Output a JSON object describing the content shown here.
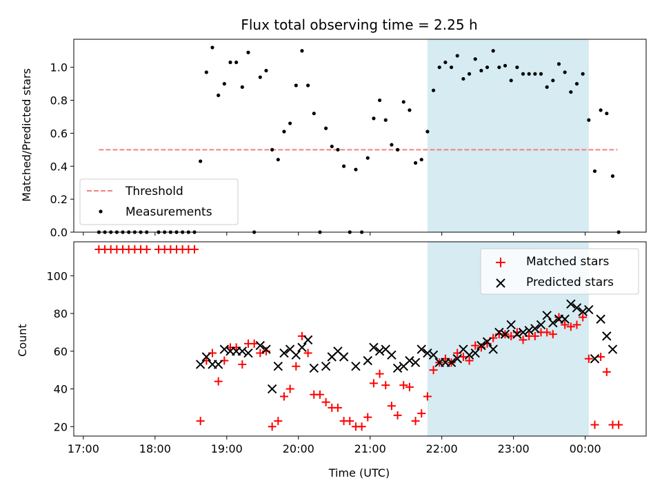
{
  "figure": {
    "title": "Flux total observing time = 2.25 h"
  },
  "colors": {
    "highlight": "#add8e6",
    "threshold": "#f08080",
    "matched": "#ff0000",
    "predicted": "#000000",
    "measurement": "#000000"
  },
  "chart_data": [
    {
      "type": "scatter",
      "panel": "top",
      "title": "Flux total observing time = 2.25 h",
      "xlabel": "",
      "ylabel": "Matched/Predicted stars",
      "ylim": [
        0,
        1.17
      ],
      "xlim": [
        "16:52",
        "00:51"
      ],
      "yticks": [
        "0.0",
        "0.2",
        "0.4",
        "0.6",
        "0.8",
        "1.0"
      ],
      "highlight_span": [
        "21:48",
        "00:03"
      ],
      "legend": {
        "position": "lower-left",
        "entries": [
          "Threshold",
          "Measurements"
        ]
      },
      "threshold": {
        "name": "Threshold",
        "y": 0.5,
        "x_range": [
          "17:13",
          "00:27"
        ],
        "style": "dashed"
      },
      "series": [
        {
          "name": "Measurements",
          "marker": "dot",
          "points": [
            [
              "17:13",
              0
            ],
            [
              "17:18",
              0
            ],
            [
              "17:23",
              0
            ],
            [
              "17:28",
              0
            ],
            [
              "17:33",
              0
            ],
            [
              "17:38",
              0
            ],
            [
              "17:43",
              0
            ],
            [
              "17:48",
              0
            ],
            [
              "17:53",
              0
            ],
            [
              "18:03",
              0
            ],
            [
              "18:08",
              0
            ],
            [
              "18:13",
              0
            ],
            [
              "18:18",
              0
            ],
            [
              "18:23",
              0
            ],
            [
              "18:28",
              0
            ],
            [
              "18:33",
              0
            ],
            [
              "18:38",
              0.43
            ],
            [
              "18:43",
              0.97
            ],
            [
              "18:48",
              1.12
            ],
            [
              "18:53",
              0.83
            ],
            [
              "18:58",
              0.9
            ],
            [
              "19:03",
              1.03
            ],
            [
              "19:08",
              1.03
            ],
            [
              "19:13",
              0.88
            ],
            [
              "19:18",
              1.09
            ],
            [
              "19:23",
              0
            ],
            [
              "19:28",
              0.94
            ],
            [
              "19:33",
              0.98
            ],
            [
              "19:38",
              0.5
            ],
            [
              "19:43",
              0.44
            ],
            [
              "19:48",
              0.61
            ],
            [
              "19:53",
              0.66
            ],
            [
              "19:58",
              0.89
            ],
            [
              "20:03",
              1.1
            ],
            [
              "20:08",
              0.89
            ],
            [
              "20:13",
              0.72
            ],
            [
              "20:18",
              0
            ],
            [
              "20:23",
              0.63
            ],
            [
              "20:28",
              0.52
            ],
            [
              "20:33",
              0.5
            ],
            [
              "20:38",
              0.4
            ],
            [
              "20:43",
              0
            ],
            [
              "20:48",
              0.38
            ],
            [
              "20:53",
              0
            ],
            [
              "20:58",
              0.45
            ],
            [
              "21:03",
              0.69
            ],
            [
              "21:08",
              0.8
            ],
            [
              "21:13",
              0.68
            ],
            [
              "21:18",
              0.53
            ],
            [
              "21:23",
              0.5
            ],
            [
              "21:28",
              0.79
            ],
            [
              "21:33",
              0.74
            ],
            [
              "21:38",
              0.42
            ],
            [
              "21:43",
              0.44
            ],
            [
              "21:48",
              0.61
            ],
            [
              "21:53",
              0.86
            ],
            [
              "21:58",
              1.0
            ],
            [
              "22:03",
              1.03
            ],
            [
              "22:08",
              1.0
            ],
            [
              "22:13",
              1.07
            ],
            [
              "22:18",
              0.93
            ],
            [
              "22:23",
              0.96
            ],
            [
              "22:28",
              1.05
            ],
            [
              "22:33",
              0.98
            ],
            [
              "22:38",
              1.0
            ],
            [
              "22:43",
              1.1
            ],
            [
              "22:48",
              1.0
            ],
            [
              "22:53",
              1.01
            ],
            [
              "22:58",
              0.92
            ],
            [
              "23:03",
              1.0
            ],
            [
              "23:08",
              0.96
            ],
            [
              "23:13",
              0.96
            ],
            [
              "23:18",
              0.96
            ],
            [
              "23:23",
              0.96
            ],
            [
              "23:28",
              0.88
            ],
            [
              "23:33",
              0.92
            ],
            [
              "23:38",
              1.02
            ],
            [
              "23:43",
              0.97
            ],
            [
              "23:48",
              0.85
            ],
            [
              "23:53",
              0.9
            ],
            [
              "23:58",
              0.96
            ],
            [
              "00:03",
              0.68
            ],
            [
              "00:08",
              0.37
            ],
            [
              "00:13",
              0.74
            ],
            [
              "00:18",
              0.72
            ],
            [
              "00:23",
              0.34
            ],
            [
              "00:28",
              0
            ]
          ]
        }
      ]
    },
    {
      "type": "scatter",
      "panel": "bottom",
      "title": "",
      "xlabel": "Time (UTC)",
      "ylabel": "Count",
      "ylim": [
        15,
        118
      ],
      "xlim": [
        "16:52",
        "00:51"
      ],
      "xticks": [
        "17:00",
        "18:00",
        "19:00",
        "20:00",
        "21:00",
        "22:00",
        "23:00",
        "00:00"
      ],
      "yticks": [
        "20",
        "40",
        "60",
        "80",
        "100"
      ],
      "highlight_span": [
        "21:48",
        "00:03"
      ],
      "legend": {
        "position": "top-right",
        "entries": [
          "Matched stars",
          "Predicted stars"
        ]
      },
      "series": [
        {
          "name": "Matched stars",
          "marker": "plus",
          "points": [
            [
              "17:13",
              114
            ],
            [
              "17:18",
              114
            ],
            [
              "17:23",
              114
            ],
            [
              "17:28",
              114
            ],
            [
              "17:33",
              114
            ],
            [
              "17:38",
              114
            ],
            [
              "17:43",
              114
            ],
            [
              "17:48",
              114
            ],
            [
              "17:53",
              114
            ],
            [
              "18:03",
              114
            ],
            [
              "18:08",
              114
            ],
            [
              "18:13",
              114
            ],
            [
              "18:18",
              114
            ],
            [
              "18:23",
              114
            ],
            [
              "18:28",
              114
            ],
            [
              "18:33",
              114
            ],
            [
              "18:38",
              23
            ],
            [
              "18:43",
              55
            ],
            [
              "18:48",
              59
            ],
            [
              "18:53",
              44
            ],
            [
              "18:58",
              55
            ],
            [
              "19:03",
              62
            ],
            [
              "19:08",
              62
            ],
            [
              "19:13",
              53
            ],
            [
              "19:18",
              64
            ],
            [
              "19:23",
              64
            ],
            [
              "19:28",
              59
            ],
            [
              "19:33",
              60
            ],
            [
              "19:38",
              20
            ],
            [
              "19:43",
              23
            ],
            [
              "19:48",
              36
            ],
            [
              "19:53",
              40
            ],
            [
              "19:58",
              52
            ],
            [
              "20:03",
              68
            ],
            [
              "20:08",
              59
            ],
            [
              "20:13",
              37
            ],
            [
              "20:18",
              37
            ],
            [
              "20:23",
              33
            ],
            [
              "20:28",
              30
            ],
            [
              "20:33",
              30
            ],
            [
              "20:38",
              23
            ],
            [
              "20:43",
              23
            ],
            [
              "20:48",
              20
            ],
            [
              "20:53",
              20
            ],
            [
              "20:58",
              25
            ],
            [
              "21:03",
              43
            ],
            [
              "21:08",
              48
            ],
            [
              "21:13",
              42
            ],
            [
              "21:18",
              31
            ],
            [
              "21:23",
              26
            ],
            [
              "21:28",
              42
            ],
            [
              "21:33",
              41
            ],
            [
              "21:38",
              23
            ],
            [
              "21:43",
              27
            ],
            [
              "21:48",
              36
            ],
            [
              "21:53",
              50
            ],
            [
              "21:58",
              54
            ],
            [
              "22:03",
              56
            ],
            [
              "22:08",
              54
            ],
            [
              "22:13",
              59
            ],
            [
              "22:18",
              57
            ],
            [
              "22:23",
              55
            ],
            [
              "22:28",
              63
            ],
            [
              "22:33",
              62
            ],
            [
              "22:38",
              64
            ],
            [
              "22:43",
              67
            ],
            [
              "22:48",
              69
            ],
            [
              "22:53",
              69
            ],
            [
              "22:58",
              68
            ],
            [
              "23:03",
              70
            ],
            [
              "23:08",
              66
            ],
            [
              "23:13",
              68
            ],
            [
              "23:18",
              68
            ],
            [
              "23:23",
              70
            ],
            [
              "23:28",
              70
            ],
            [
              "23:33",
              69
            ],
            [
              "23:38",
              78
            ],
            [
              "23:43",
              74
            ],
            [
              "23:48",
              73
            ],
            [
              "23:53",
              74
            ],
            [
              "23:58",
              78
            ],
            [
              "00:03",
              56
            ],
            [
              "00:08",
              21
            ],
            [
              "00:13",
              57
            ],
            [
              "00:18",
              49
            ],
            [
              "00:23",
              21
            ],
            [
              "00:28",
              21
            ]
          ]
        },
        {
          "name": "Predicted stars",
          "marker": "x",
          "points": [
            [
              "18:38",
              53
            ],
            [
              "18:43",
              57
            ],
            [
              "18:48",
              53
            ],
            [
              "18:53",
              53
            ],
            [
              "18:58",
              61
            ],
            [
              "19:03",
              60
            ],
            [
              "19:08",
              60
            ],
            [
              "19:13",
              60
            ],
            [
              "19:18",
              59
            ],
            [
              "19:28",
              63
            ],
            [
              "19:33",
              61
            ],
            [
              "19:38",
              40
            ],
            [
              "19:43",
              52
            ],
            [
              "19:48",
              59
            ],
            [
              "19:53",
              61
            ],
            [
              "19:58",
              58
            ],
            [
              "20:03",
              62
            ],
            [
              "20:08",
              66
            ],
            [
              "20:13",
              51
            ],
            [
              "20:23",
              52
            ],
            [
              "20:28",
              57
            ],
            [
              "20:33",
              60
            ],
            [
              "20:38",
              57
            ],
            [
              "20:48",
              52
            ],
            [
              "20:58",
              55
            ],
            [
              "21:03",
              62
            ],
            [
              "21:08",
              60
            ],
            [
              "21:13",
              61
            ],
            [
              "21:18",
              58
            ],
            [
              "21:23",
              51
            ],
            [
              "21:28",
              52
            ],
            [
              "21:33",
              55
            ],
            [
              "21:38",
              54
            ],
            [
              "21:43",
              61
            ],
            [
              "21:48",
              59
            ],
            [
              "21:53",
              58
            ],
            [
              "21:58",
              54
            ],
            [
              "22:03",
              54
            ],
            [
              "22:08",
              54
            ],
            [
              "22:13",
              56
            ],
            [
              "22:18",
              61
            ],
            [
              "22:23",
              58
            ],
            [
              "22:28",
              59
            ],
            [
              "22:33",
              63
            ],
            [
              "22:38",
              65
            ],
            [
              "22:43",
              61
            ],
            [
              "22:48",
              70
            ],
            [
              "22:53",
              69
            ],
            [
              "22:58",
              74
            ],
            [
              "23:03",
              69
            ],
            [
              "23:08",
              70
            ],
            [
              "23:13",
              71
            ],
            [
              "23:18",
              72
            ],
            [
              "23:23",
              74
            ],
            [
              "23:28",
              79
            ],
            [
              "23:33",
              75
            ],
            [
              "23:38",
              77
            ],
            [
              "23:43",
              77
            ],
            [
              "23:48",
              85
            ],
            [
              "23:53",
              83
            ],
            [
              "23:58",
              81
            ],
            [
              "00:03",
              82
            ],
            [
              "00:08",
              56
            ],
            [
              "00:13",
              77
            ],
            [
              "00:18",
              68
            ],
            [
              "00:23",
              61
            ]
          ]
        }
      ]
    }
  ]
}
